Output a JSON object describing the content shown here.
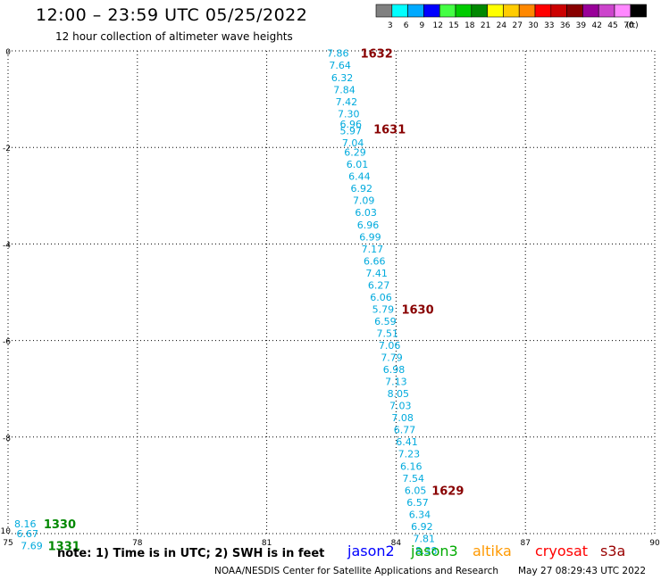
{
  "header": {
    "title": "12:00 – 23:59 UTC 05/25/2022",
    "subtitle": "12 hour collection of altimeter wave heights"
  },
  "legend": {
    "unit": "(ft)",
    "bins": [
      {
        "label": "3",
        "color": "#808080"
      },
      {
        "label": "6",
        "color": "#00ffff"
      },
      {
        "label": "9",
        "color": "#00aaff"
      },
      {
        "label": "12",
        "color": "#0000ff"
      },
      {
        "label": "15",
        "color": "#44ff44"
      },
      {
        "label": "18",
        "color": "#00cc00"
      },
      {
        "label": "21",
        "color": "#008800"
      },
      {
        "label": "24",
        "color": "#ffff00"
      },
      {
        "label": "27",
        "color": "#ffcc00"
      },
      {
        "label": "30",
        "color": "#ff8800"
      },
      {
        "label": "33",
        "color": "#ff0000"
      },
      {
        "label": "36",
        "color": "#cc0000"
      },
      {
        "label": "39",
        "color": "#880000"
      },
      {
        "label": "42",
        "color": "#990099"
      },
      {
        "label": "45",
        "color": "#cc44cc"
      },
      {
        "label": "70",
        "color": "#ff88ff"
      },
      {
        "label": "",
        "color": "#000000"
      }
    ]
  },
  "footer": {
    "note": "note: 1) Time is in UTC; 2) SWH is in feet",
    "credit": "NOAA/NESDIS Center for Satellite Applications and Research",
    "timestamp": "May 27 08:29:43 UTC 2022",
    "satellites": [
      {
        "name": "jason2",
        "color": "#0000ff"
      },
      {
        "name": "jason3",
        "color": "#00aa00"
      },
      {
        "name": "altika",
        "color": "#ff9900"
      },
      {
        "name": "cryosat",
        "color": "#ff0000"
      },
      {
        "name": "s3a",
        "color": "#990000"
      }
    ]
  },
  "chart_data": {
    "type": "scatter",
    "title": "12:00 – 23:59 UTC 05/25/2022",
    "xlim": [
      75,
      90
    ],
    "ylim": [
      -10,
      0
    ],
    "xticks": [
      "75",
      "78",
      "81",
      "84",
      "87",
      "90"
    ],
    "yticks": [
      "0",
      "-2",
      "-4",
      "-6",
      "-8",
      "-10"
    ],
    "grid": true,
    "value_color": "#00aadd",
    "track_points": [
      {
        "x": 82.65,
        "y": -0.05,
        "v": "7.86"
      },
      {
        "x": 82.7,
        "y": -0.3,
        "v": "7.64"
      },
      {
        "x": 82.75,
        "y": -0.55,
        "v": "6.32"
      },
      {
        "x": 82.8,
        "y": -0.8,
        "v": "7.84"
      },
      {
        "x": 82.85,
        "y": -1.05,
        "v": "7.42"
      },
      {
        "x": 82.9,
        "y": -1.3,
        "v": "7.30"
      },
      {
        "x": 82.95,
        "y": -1.52,
        "v": "6.96"
      },
      {
        "x": 82.95,
        "y": -1.65,
        "v": "5.97"
      },
      {
        "x": 83.0,
        "y": -1.9,
        "v": "7.04"
      },
      {
        "x": 83.05,
        "y": -2.1,
        "v": "6.29"
      },
      {
        "x": 83.1,
        "y": -2.35,
        "v": "6.01"
      },
      {
        "x": 83.15,
        "y": -2.6,
        "v": "6.44"
      },
      {
        "x": 83.2,
        "y": -2.85,
        "v": "6.92"
      },
      {
        "x": 83.25,
        "y": -3.1,
        "v": "7.09"
      },
      {
        "x": 83.3,
        "y": -3.35,
        "v": "6.03"
      },
      {
        "x": 83.35,
        "y": -3.6,
        "v": "6.96"
      },
      {
        "x": 83.4,
        "y": -3.85,
        "v": "6.99"
      },
      {
        "x": 83.45,
        "y": -4.1,
        "v": "7.17"
      },
      {
        "x": 83.5,
        "y": -4.35,
        "v": "6.66"
      },
      {
        "x": 83.55,
        "y": -4.6,
        "v": "7.41"
      },
      {
        "x": 83.6,
        "y": -4.85,
        "v": "6.27"
      },
      {
        "x": 83.65,
        "y": -5.1,
        "v": "6.06"
      },
      {
        "x": 83.7,
        "y": -5.35,
        "v": "5.79"
      },
      {
        "x": 83.75,
        "y": -5.6,
        "v": "6.59"
      },
      {
        "x": 83.8,
        "y": -5.85,
        "v": "7.51"
      },
      {
        "x": 83.85,
        "y": -6.1,
        "v": "7.06"
      },
      {
        "x": 83.9,
        "y": -6.35,
        "v": "7.79"
      },
      {
        "x": 83.95,
        "y": -6.6,
        "v": "6.98"
      },
      {
        "x": 84.0,
        "y": -6.85,
        "v": "7.13"
      },
      {
        "x": 84.05,
        "y": -7.1,
        "v": "8.05"
      },
      {
        "x": 84.1,
        "y": -7.35,
        "v": "7.03"
      },
      {
        "x": 84.15,
        "y": -7.6,
        "v": "7.08"
      },
      {
        "x": 84.2,
        "y": -7.85,
        "v": "6.77"
      },
      {
        "x": 84.25,
        "y": -8.1,
        "v": "6.41"
      },
      {
        "x": 84.3,
        "y": -8.35,
        "v": "7.23"
      },
      {
        "x": 84.35,
        "y": -8.6,
        "v": "6.16"
      },
      {
        "x": 84.4,
        "y": -8.85,
        "v": "7.54"
      },
      {
        "x": 84.45,
        "y": -9.1,
        "v": "6.05"
      },
      {
        "x": 84.5,
        "y": -9.35,
        "v": "6.57"
      },
      {
        "x": 84.55,
        "y": -9.6,
        "v": "6.34"
      },
      {
        "x": 84.6,
        "y": -9.85,
        "v": "6.92"
      },
      {
        "x": 84.65,
        "y": -10.1,
        "v": "7.81"
      },
      {
        "x": 84.7,
        "y": -10.35,
        "v": "8.38"
      },
      {
        "x": 75.4,
        "y": -9.8,
        "v": "8.16"
      },
      {
        "x": 75.45,
        "y": -10.0,
        "v": "6.67"
      },
      {
        "x": 75.55,
        "y": -10.25,
        "v": "7.69"
      }
    ],
    "time_labels": [
      {
        "x": 83.55,
        "y": -0.05,
        "t": "1632",
        "color": "#880000"
      },
      {
        "x": 83.85,
        "y": -1.62,
        "t": "1631",
        "color": "#880000"
      },
      {
        "x": 84.5,
        "y": -5.35,
        "t": "1630",
        "color": "#880000"
      },
      {
        "x": 85.2,
        "y": -9.1,
        "t": "1629",
        "color": "#880000"
      },
      {
        "x": 76.2,
        "y": -9.8,
        "t": "1330",
        "color": "#008800"
      },
      {
        "x": 76.3,
        "y": -10.25,
        "t": "1331",
        "color": "#008800"
      }
    ]
  }
}
